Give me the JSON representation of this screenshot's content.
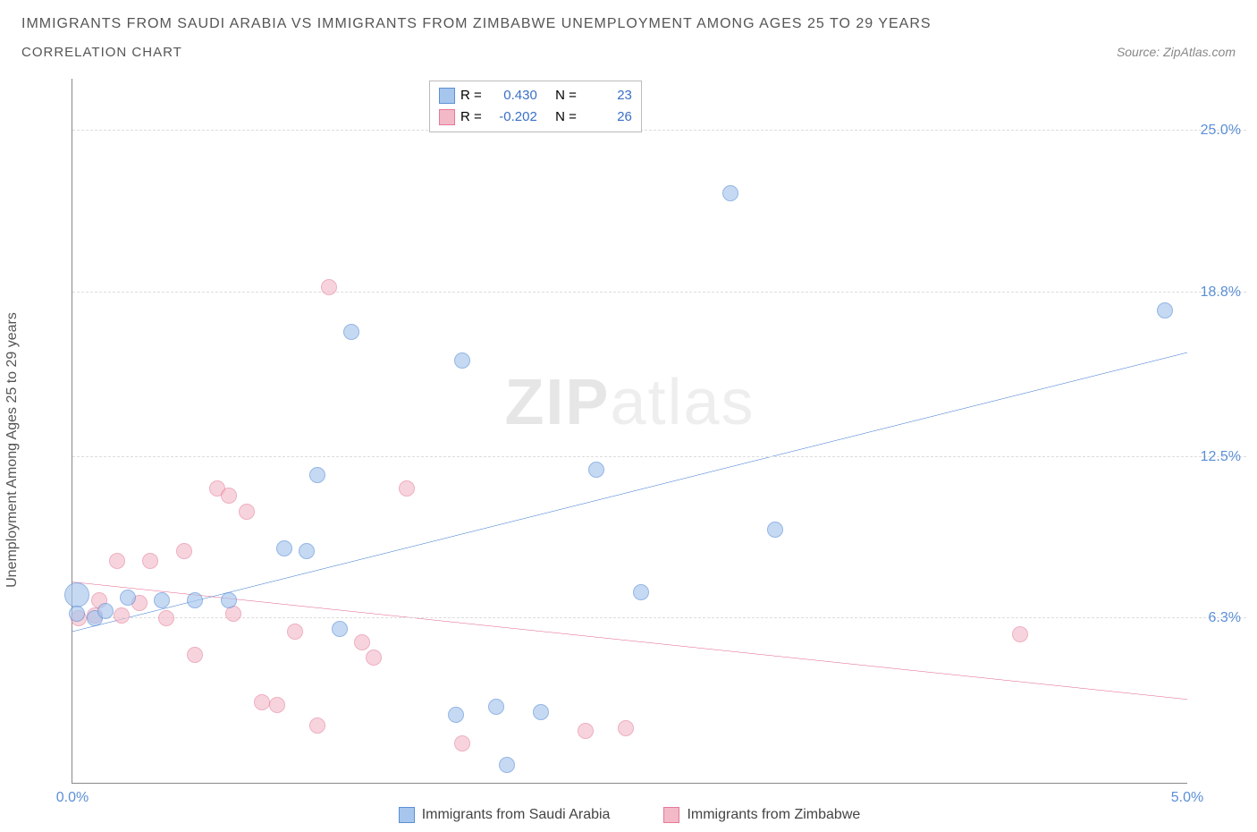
{
  "title": "IMMIGRANTS FROM SAUDI ARABIA VS IMMIGRANTS FROM ZIMBABWE UNEMPLOYMENT AMONG AGES 25 TO 29 YEARS",
  "subtitle": "CORRELATION CHART",
  "source_label": "Source: ZipAtlas.com",
  "y_axis_label": "Unemployment Among Ages 25 to 29 years",
  "watermark_bold": "ZIP",
  "watermark_light": "atlas",
  "chart": {
    "type": "scatter",
    "xlim": [
      0,
      5
    ],
    "ylim": [
      0,
      27
    ],
    "xticks": [
      {
        "v": 0,
        "label": "0.0%"
      },
      {
        "v": 5,
        "label": "5.0%"
      }
    ],
    "yticks": [
      {
        "v": 6.3,
        "label": "6.3%"
      },
      {
        "v": 12.5,
        "label": "12.5%"
      },
      {
        "v": 18.8,
        "label": "18.8%"
      },
      {
        "v": 25.0,
        "label": "25.0%"
      }
    ],
    "background_color": "#ffffff",
    "grid_color": "#dddddd",
    "axis_color": "#888888",
    "tick_label_color": "#5b8fd6"
  },
  "series": {
    "saudi": {
      "label": "Immigrants from Saudi Arabia",
      "fill": "#a7c6ed",
      "stroke": "#5b8fd6",
      "line_color": "#2f6fd0",
      "line_width": 2,
      "marker_radius": 9,
      "marker_opacity": 0.65,
      "R": "0.430",
      "N": "23",
      "trend": {
        "x1": 0,
        "y1": 5.8,
        "x2": 5,
        "y2": 16.5
      },
      "points": [
        {
          "x": 0.02,
          "y": 7.2,
          "r": 14
        },
        {
          "x": 0.02,
          "y": 6.5
        },
        {
          "x": 0.1,
          "y": 6.3
        },
        {
          "x": 0.15,
          "y": 6.6
        },
        {
          "x": 0.25,
          "y": 7.1
        },
        {
          "x": 0.4,
          "y": 7.0
        },
        {
          "x": 0.55,
          "y": 7.0
        },
        {
          "x": 0.7,
          "y": 7.0
        },
        {
          "x": 0.95,
          "y": 9.0
        },
        {
          "x": 1.05,
          "y": 8.9
        },
        {
          "x": 1.1,
          "y": 11.8
        },
        {
          "x": 1.2,
          "y": 5.9
        },
        {
          "x": 1.25,
          "y": 17.3
        },
        {
          "x": 1.72,
          "y": 2.6
        },
        {
          "x": 1.75,
          "y": 16.2
        },
        {
          "x": 1.9,
          "y": 2.9
        },
        {
          "x": 1.95,
          "y": 0.7
        },
        {
          "x": 2.1,
          "y": 2.7
        },
        {
          "x": 2.35,
          "y": 12.0
        },
        {
          "x": 2.55,
          "y": 7.3
        },
        {
          "x": 2.95,
          "y": 22.6
        },
        {
          "x": 3.15,
          "y": 9.7
        },
        {
          "x": 4.9,
          "y": 18.1
        }
      ]
    },
    "zimbabwe": {
      "label": "Immigrants from Zimbabwe",
      "fill": "#f3b9c7",
      "stroke": "#e47a97",
      "line_color": "#e25d84",
      "line_width": 2,
      "marker_radius": 9,
      "marker_opacity": 0.6,
      "R": "-0.202",
      "N": "26",
      "trend": {
        "x1": 0,
        "y1": 7.7,
        "x2": 5,
        "y2": 3.2
      },
      "points": [
        {
          "x": 0.03,
          "y": 6.3
        },
        {
          "x": 0.1,
          "y": 6.4
        },
        {
          "x": 0.12,
          "y": 7.0
        },
        {
          "x": 0.2,
          "y": 8.5
        },
        {
          "x": 0.22,
          "y": 6.4
        },
        {
          "x": 0.3,
          "y": 6.9
        },
        {
          "x": 0.35,
          "y": 8.5
        },
        {
          "x": 0.42,
          "y": 6.3
        },
        {
          "x": 0.5,
          "y": 8.9
        },
        {
          "x": 0.55,
          "y": 4.9
        },
        {
          "x": 0.65,
          "y": 11.3
        },
        {
          "x": 0.7,
          "y": 11.0
        },
        {
          "x": 0.72,
          "y": 6.5
        },
        {
          "x": 0.78,
          "y": 10.4
        },
        {
          "x": 0.85,
          "y": 3.1
        },
        {
          "x": 0.92,
          "y": 3.0
        },
        {
          "x": 1.0,
          "y": 5.8
        },
        {
          "x": 1.1,
          "y": 2.2
        },
        {
          "x": 1.15,
          "y": 19.0
        },
        {
          "x": 1.3,
          "y": 5.4
        },
        {
          "x": 1.35,
          "y": 4.8
        },
        {
          "x": 1.5,
          "y": 11.3
        },
        {
          "x": 1.75,
          "y": 1.5
        },
        {
          "x": 2.3,
          "y": 2.0
        },
        {
          "x": 2.48,
          "y": 2.1
        },
        {
          "x": 4.25,
          "y": 5.7
        }
      ]
    }
  },
  "legend_box": {
    "r_label": "R =",
    "n_label": "N ="
  }
}
